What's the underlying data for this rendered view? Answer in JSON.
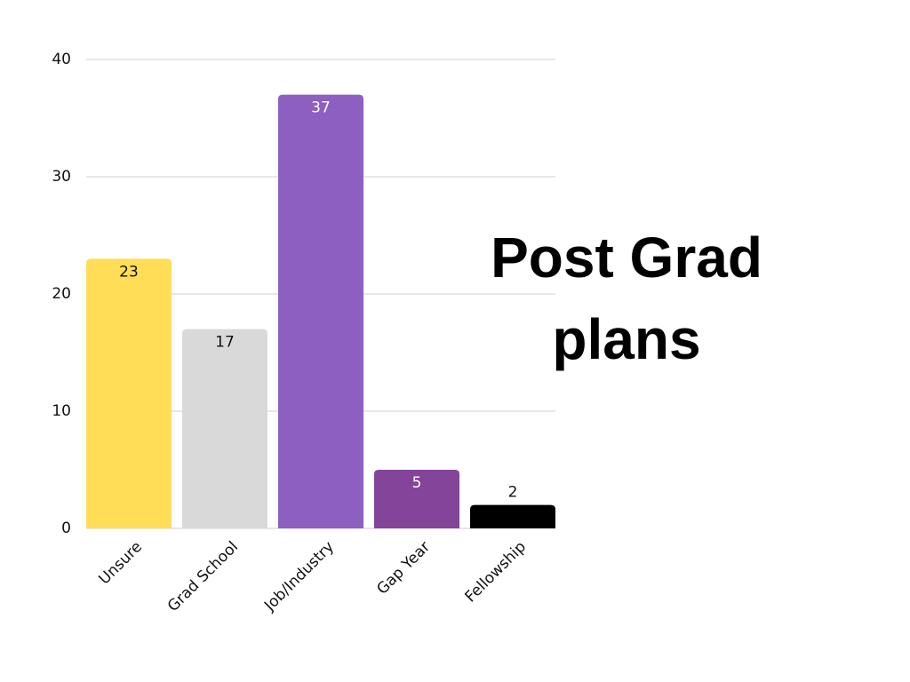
{
  "chart_data": {
    "type": "bar",
    "title": "Post Grad plans",
    "categories": [
      "Unsure",
      "Grad School",
      "Job/Industry",
      "Gap Year",
      "Fellowship"
    ],
    "values": [
      23,
      17,
      37,
      5,
      2
    ],
    "colors": [
      "#ffdd57",
      "#d9d9d9",
      "#8c5fc0",
      "#84449a",
      "#000000"
    ],
    "ylim": [
      0,
      40
    ],
    "yticks": [
      0,
      10,
      20,
      30,
      40
    ],
    "grid": true
  }
}
